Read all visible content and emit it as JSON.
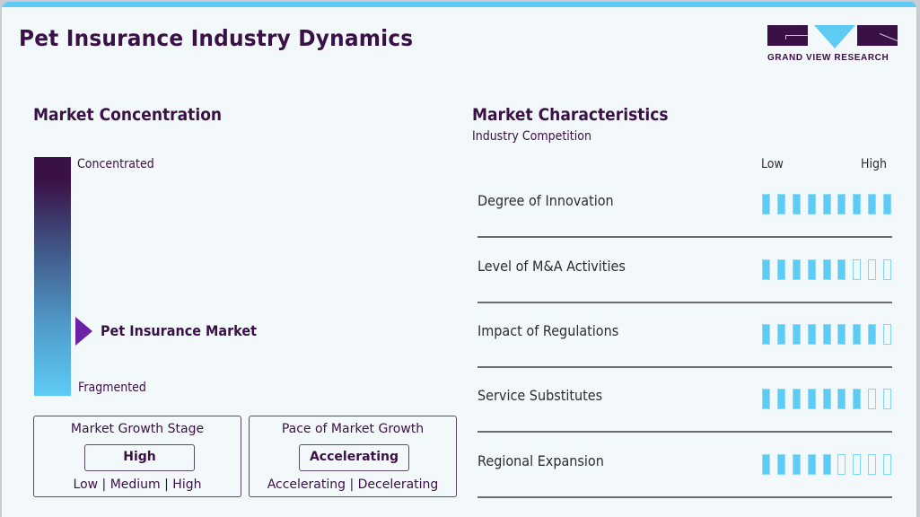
{
  "header": {
    "title": "Pet Insurance Industry Dynamics",
    "logo_text": "GRAND VIEW RESEARCH"
  },
  "colors": {
    "brand_dark": "#3a1147",
    "accent_blue": "#5ecbf5",
    "pointer_purple": "#6c22a6",
    "background": "#f3f8fb"
  },
  "market_concentration": {
    "heading": "Market Concentration",
    "top_label": "Concentrated",
    "bottom_label": "Fragmented",
    "pointer_label": "Pet Insurance Market"
  },
  "growth_stage": {
    "title": "Market Growth Stage",
    "value": "High",
    "options": "Low | Medium | High"
  },
  "growth_pace": {
    "title": "Pace of Market Growth",
    "value": "Accelerating",
    "options": "Accelerating | Decelerating"
  },
  "market_characteristics": {
    "heading": "Market Characteristics",
    "subheading": "Industry Competition",
    "scale_low": "Low",
    "scale_high": "High",
    "max_rating": 9,
    "rows": [
      {
        "label": "Degree of Innovation",
        "rating": 9
      },
      {
        "label": "Level of M&A Activities",
        "rating": 6
      },
      {
        "label": "Impact of Regulations",
        "rating": 8
      },
      {
        "label": "Service Substitutes",
        "rating": 7
      },
      {
        "label": "Regional Expansion",
        "rating": 5
      }
    ]
  }
}
